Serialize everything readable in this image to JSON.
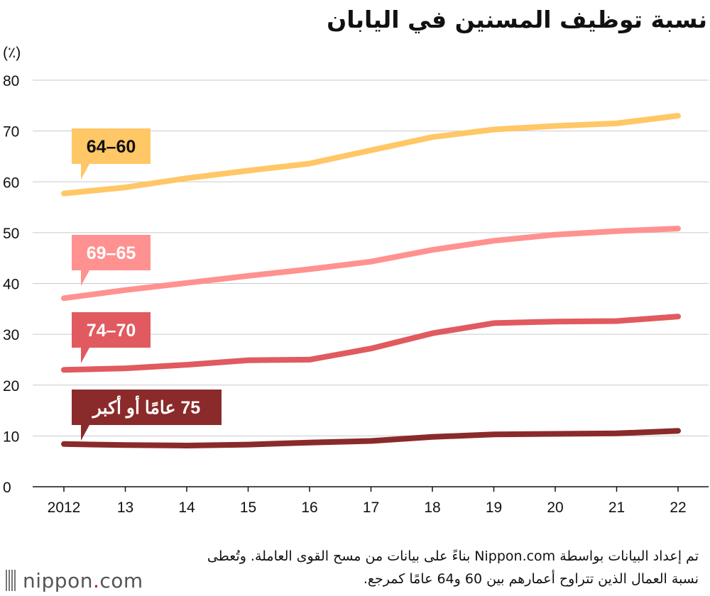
{
  "chart_data": {
    "type": "line",
    "title": "نسبة توظيف المسنين في اليابان",
    "ylabel": "(٪)",
    "xlabel": "",
    "categories": [
      "2012",
      "13",
      "14",
      "15",
      "16",
      "17",
      "18",
      "19",
      "20",
      "21",
      "22"
    ],
    "ylim": [
      0,
      80
    ],
    "yticks": [
      "0",
      "10",
      "20",
      "30",
      "40",
      "50",
      "60",
      "70",
      "80"
    ],
    "grid": true,
    "series": [
      {
        "name": "60–64",
        "color": "#ffc766",
        "text_color": "#111111",
        "values": [
          57.7,
          58.9,
          60.7,
          62.2,
          63.6,
          66.2,
          68.8,
          70.3,
          71.0,
          71.5,
          73.0
        ]
      },
      {
        "name": "65–69",
        "color": "#ff9290",
        "text_color": "#ffffff",
        "values": [
          37.1,
          38.7,
          40.1,
          41.5,
          42.8,
          44.3,
          46.6,
          48.4,
          49.6,
          50.3,
          50.8
        ]
      },
      {
        "name": "70–74",
        "color": "#e05a5f",
        "text_color": "#ffffff",
        "values": [
          23.0,
          23.3,
          24.0,
          24.9,
          25.0,
          27.2,
          30.2,
          32.2,
          32.5,
          32.6,
          33.5
        ]
      },
      {
        "name": "75 عامًا أو أكبر",
        "color": "#8b2a2a",
        "text_color": "#ffffff",
        "values": [
          8.4,
          8.2,
          8.1,
          8.3,
          8.7,
          9.0,
          9.8,
          10.3,
          10.4,
          10.5,
          11.0
        ]
      }
    ]
  },
  "footer": {
    "note": "تم إعداد البيانات بواسطة Nippon.com بناءً على بيانات من مسح القوى العاملة. وتُعطى نسبة العمال الذين تتراوح أعمارهم بين 60 و64 عامًا كمرجع."
  },
  "logo": {
    "name": "nippon",
    "dot": ".",
    "suffix": "com"
  }
}
